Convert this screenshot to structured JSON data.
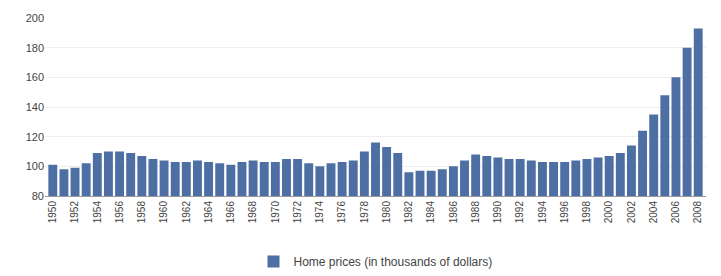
{
  "chart_data": {
    "type": "bar",
    "x": [
      1950,
      1951,
      1952,
      1953,
      1954,
      1955,
      1956,
      1957,
      1958,
      1959,
      1960,
      1961,
      1962,
      1963,
      1964,
      1965,
      1966,
      1967,
      1968,
      1969,
      1970,
      1971,
      1972,
      1973,
      1974,
      1975,
      1976,
      1977,
      1978,
      1979,
      1980,
      1981,
      1982,
      1983,
      1984,
      1985,
      1986,
      1987,
      1988,
      1989,
      1990,
      1991,
      1992,
      1993,
      1994,
      1995,
      1996,
      1997,
      1998,
      1999,
      2000,
      2001,
      2002,
      2003,
      2004,
      2005,
      2006,
      2007,
      2008
    ],
    "series": [
      {
        "name": "Home prices (in thousands of dollars)",
        "color": "#4d6fa3",
        "values": [
          101,
          98,
          99,
          102,
          109,
          110,
          110,
          109,
          107,
          105,
          104,
          103,
          103,
          104,
          103,
          102,
          101,
          103,
          104,
          103,
          103,
          105,
          105,
          102,
          100,
          102,
          103,
          104,
          110,
          116,
          113,
          109,
          96,
          97,
          97,
          98,
          100,
          104,
          108,
          107,
          106,
          105,
          105,
          104,
          103,
          103,
          103,
          104,
          105,
          106,
          107,
          109,
          114,
          124,
          135,
          148,
          160,
          180,
          193
        ]
      }
    ],
    "xlim": [
      1949.3,
      2008.7
    ],
    "xticks": [
      1950,
      1952,
      1954,
      1956,
      1958,
      1960,
      1962,
      1964,
      1966,
      1968,
      1970,
      1972,
      1974,
      1976,
      1978,
      1980,
      1982,
      1984,
      1986,
      1988,
      1990,
      1992,
      1994,
      1996,
      1998,
      2000,
      2002,
      2004,
      2006,
      2008
    ],
    "ylim": [
      80,
      200
    ],
    "yticks": [
      80,
      100,
      120,
      140,
      160,
      180,
      200
    ],
    "grid": true,
    "legend": "bottom"
  }
}
